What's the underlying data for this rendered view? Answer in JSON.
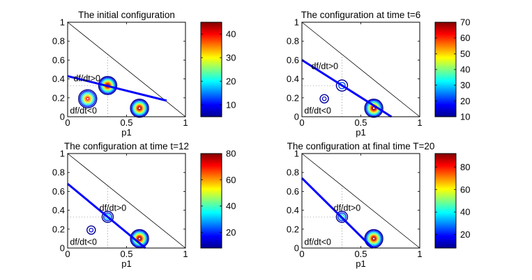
{
  "colormap": [
    "#00008f",
    "#0000ff",
    "#0080ff",
    "#00ffff",
    "#80ff80",
    "#ffff00",
    "#ff8000",
    "#ff0000",
    "#800000"
  ],
  "line_color": "#0000ff",
  "chart_data": [
    {
      "type": "contour",
      "title": "The initial configuration",
      "xlabel": "p1",
      "ylabel": "",
      "xlim": [
        0,
        1
      ],
      "ylim": [
        0,
        1
      ],
      "xticks": [
        0,
        0.5,
        1
      ],
      "xtick_labels": [
        "0",
        "0.5",
        "1"
      ],
      "yticks": [
        0,
        0.2,
        0.4,
        0.6,
        0.8,
        1
      ],
      "ytick_labels": [
        "0",
        "0.2",
        "0.4",
        "0.6",
        "0.8",
        "1"
      ],
      "simplex_line": [
        [
          0,
          1
        ],
        [
          1,
          0
        ]
      ],
      "threshold_line": [
        [
          0,
          0.43
        ],
        [
          0.84,
          0.17
        ]
      ],
      "annotations": [
        {
          "text": "df/dt>0",
          "x": 0.05,
          "y": 0.36
        },
        {
          "text": "df/dt<0",
          "x": 0.02,
          "y": 0.02
        }
      ],
      "peaks": [
        {
          "x": 0.17,
          "y": 0.19,
          "level": 40
        },
        {
          "x": 0.34,
          "y": 0.33,
          "level": 44
        },
        {
          "x": 0.61,
          "y": 0.09,
          "level": 44
        }
      ],
      "colorbar": {
        "range": [
          5,
          45
        ],
        "ticks": [
          10,
          20,
          30,
          40
        ],
        "tick_labels": [
          "10",
          "20",
          "30",
          "40"
        ]
      }
    },
    {
      "type": "contour",
      "title": "The configuration at time t=6",
      "xlabel": "p1",
      "ylabel": "",
      "xlim": [
        0,
        1
      ],
      "ylim": [
        0,
        1
      ],
      "xticks": [
        0,
        0.5,
        1
      ],
      "xtick_labels": [
        "0",
        "0.5",
        "1"
      ],
      "yticks": [
        0,
        0.2,
        0.4,
        0.6,
        0.8,
        1
      ],
      "ytick_labels": [
        "0",
        "0.2",
        "0.4",
        "0.6",
        "0.8",
        "1"
      ],
      "simplex_line": [
        [
          0,
          1
        ],
        [
          1,
          0
        ]
      ],
      "threshold_line": [
        [
          0,
          0.6
        ],
        [
          0.76,
          0
        ]
      ],
      "annotations": [
        {
          "text": "df/dt>0",
          "x": 0.08,
          "y": 0.49
        },
        {
          "text": "df/dt<0",
          "x": 0.02,
          "y": 0.02
        }
      ],
      "peaks": [
        {
          "x": 0.19,
          "y": 0.19,
          "level": 18
        },
        {
          "x": 0.34,
          "y": 0.33,
          "level": 35
        },
        {
          "x": 0.61,
          "y": 0.09,
          "level": 70
        }
      ],
      "colorbar": {
        "range": [
          10,
          70
        ],
        "ticks": [
          10,
          20,
          30,
          40,
          50,
          60,
          70
        ],
        "tick_labels": [
          "10",
          "20",
          "30",
          "40",
          "50",
          "60",
          "70"
        ]
      }
    },
    {
      "type": "contour",
      "title": "The configuration at time t=12",
      "xlabel": "p1",
      "ylabel": "",
      "xlim": [
        0,
        1
      ],
      "ylim": [
        0,
        1
      ],
      "xticks": [
        0,
        0.5,
        1
      ],
      "xtick_labels": [
        "0",
        "0.5",
        "1"
      ],
      "yticks": [
        0,
        0.2,
        0.4,
        0.6,
        0.8,
        1
      ],
      "ytick_labels": [
        "0",
        "0.2",
        "0.4",
        "0.6",
        "0.8",
        "1"
      ],
      "simplex_line": [
        [
          0,
          1
        ],
        [
          1,
          0
        ]
      ],
      "threshold_line": [
        [
          0,
          0.68
        ],
        [
          0.66,
          0
        ]
      ],
      "annotations": [
        {
          "text": "df/dt>0",
          "x": 0.27,
          "y": 0.38
        },
        {
          "text": "df/dt<0",
          "x": 0.02,
          "y": 0.02
        }
      ],
      "peaks": [
        {
          "x": 0.2,
          "y": 0.19,
          "level": 12
        },
        {
          "x": 0.34,
          "y": 0.33,
          "level": 45
        },
        {
          "x": 0.61,
          "y": 0.1,
          "level": 80
        }
      ],
      "colorbar": {
        "range": [
          8,
          80
        ],
        "ticks": [
          20,
          40,
          60,
          80
        ],
        "tick_labels": [
          "20",
          "40",
          "60",
          "80"
        ]
      }
    },
    {
      "type": "contour",
      "title": "The configuration at final time T=20",
      "xlabel": "p1",
      "ylabel": "",
      "xlim": [
        0,
        1
      ],
      "ylim": [
        0,
        1
      ],
      "xticks": [
        0,
        0.5,
        1
      ],
      "xtick_labels": [
        "0",
        "0.5",
        "1"
      ],
      "yticks": [
        0,
        0.2,
        0.4,
        0.6,
        0.8,
        1
      ],
      "ytick_labels": [
        "0",
        "0.2",
        "0.4",
        "0.6",
        "0.8",
        "1"
      ],
      "simplex_line": [
        [
          0,
          1
        ],
        [
          1,
          0
        ]
      ],
      "threshold_line": [
        [
          0,
          0.74
        ],
        [
          0.6,
          0
        ]
      ],
      "annotations": [
        {
          "text": "df/dt>0",
          "x": 0.27,
          "y": 0.38
        },
        {
          "text": "df/dt<0",
          "x": 0.02,
          "y": 0.02
        }
      ],
      "peaks": [
        {
          "x": 0.34,
          "y": 0.33,
          "level": 50
        },
        {
          "x": 0.61,
          "y": 0.1,
          "level": 90
        }
      ],
      "colorbar": {
        "range": [
          8,
          92
        ],
        "ticks": [
          20,
          40,
          60,
          80
        ],
        "tick_labels": [
          "20",
          "40",
          "60",
          "80"
        ]
      }
    }
  ]
}
